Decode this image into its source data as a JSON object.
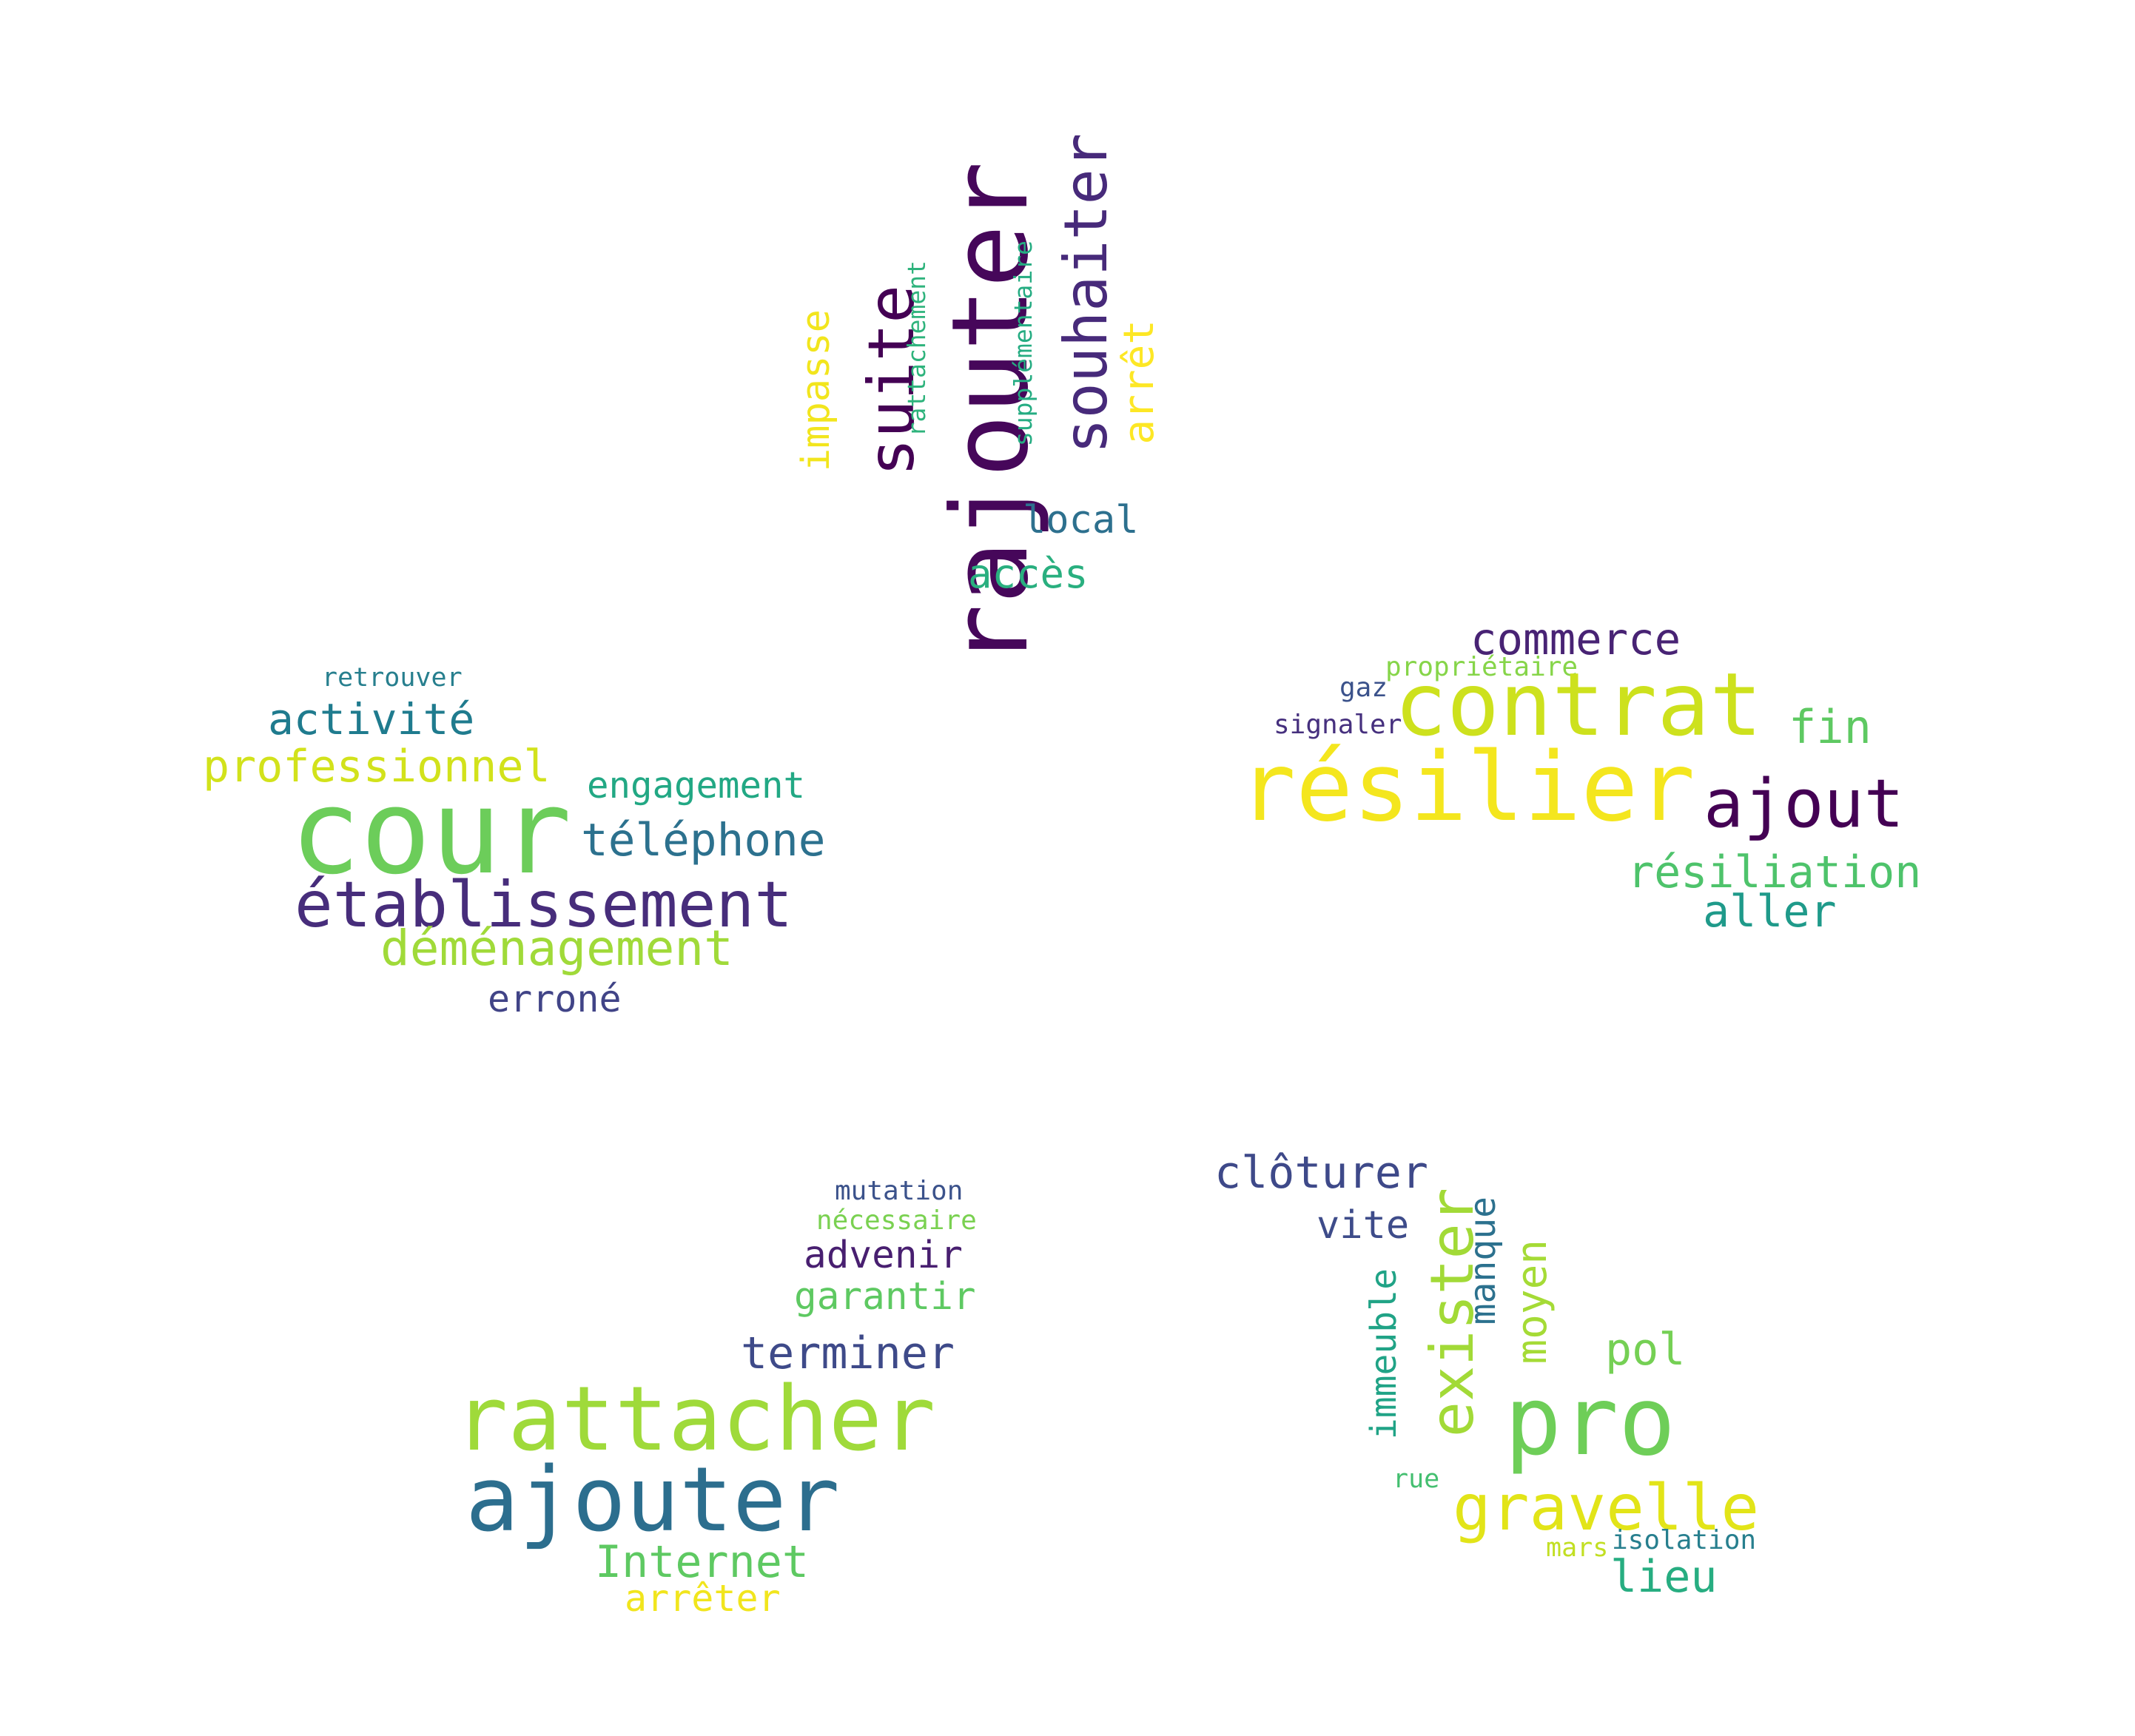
{
  "clusters": [
    {
      "name": "top",
      "words": [
        {
          "text": "rajouter",
          "color": "#46075a"
        },
        {
          "text": "suite",
          "color": "#440154"
        },
        {
          "text": "souhaiter",
          "color": "#472a7a"
        },
        {
          "text": "arrêt",
          "color": "#fde725"
        },
        {
          "text": "impasse",
          "color": "#f2e51d"
        },
        {
          "text": "rattachement",
          "color": "#2eb37c"
        },
        {
          "text": "supplémentaire",
          "color": "#25ac82"
        },
        {
          "text": "local",
          "color": "#2d708e"
        },
        {
          "text": "accès",
          "color": "#29af7f"
        }
      ]
    },
    {
      "name": "left",
      "words": [
        {
          "text": "retrouver",
          "color": "#277f8e"
        },
        {
          "text": "activité",
          "color": "#1f7b8e"
        },
        {
          "text": "professionnel",
          "color": "#d2e21b"
        },
        {
          "text": "cour",
          "color": "#6ccd5a"
        },
        {
          "text": "engagement",
          "color": "#22a884"
        },
        {
          "text": "téléphone",
          "color": "#2c718e"
        },
        {
          "text": "établissement",
          "color": "#472d7b"
        },
        {
          "text": "déménagement",
          "color": "#a0da39"
        },
        {
          "text": "erroné",
          "color": "#414487"
        }
      ]
    },
    {
      "name": "right",
      "words": [
        {
          "text": "commerce",
          "color": "#482374"
        },
        {
          "text": "propriétaire",
          "color": "#86d549"
        },
        {
          "text": "gaz",
          "color": "#3b528b"
        },
        {
          "text": "contrat",
          "color": "#cde11d"
        },
        {
          "text": "signaler",
          "color": "#46307e"
        },
        {
          "text": "fin",
          "color": "#5ec962"
        },
        {
          "text": "résilier",
          "color": "#f4e61e"
        },
        {
          "text": "ajout",
          "color": "#440154"
        },
        {
          "text": "résiliation",
          "color": "#4ec36b"
        },
        {
          "text": "aller",
          "color": "#1f9a8a"
        }
      ]
    },
    {
      "name": "bottom-left",
      "words": [
        {
          "text": "mutation",
          "color": "#3b528b"
        },
        {
          "text": "nécessaire",
          "color": "#7ad151"
        },
        {
          "text": "advenir",
          "color": "#481f70"
        },
        {
          "text": "garantir",
          "color": "#5ec962"
        },
        {
          "text": "terminer",
          "color": "#3e4a89"
        },
        {
          "text": "rattacher",
          "color": "#9fda3a"
        },
        {
          "text": "ajouter",
          "color": "#2c6e8e"
        },
        {
          "text": "Internet",
          "color": "#5ec962"
        },
        {
          "text": "arrêter",
          "color": "#f1e51d"
        }
      ]
    },
    {
      "name": "bottom-right",
      "words": [
        {
          "text": "clôturer",
          "color": "#3e4989"
        },
        {
          "text": "vite",
          "color": "#3e4c8a"
        },
        {
          "text": "exister",
          "color": "#a2da37"
        },
        {
          "text": "manque",
          "color": "#2c718e"
        },
        {
          "text": "immeuble",
          "color": "#20a386"
        },
        {
          "text": "moyen",
          "color": "#a5db36"
        },
        {
          "text": "pol",
          "color": "#75d054"
        },
        {
          "text": "pro",
          "color": "#6ece58"
        },
        {
          "text": "rue",
          "color": "#44bf70"
        },
        {
          "text": "gravelle",
          "color": "#e2e418"
        },
        {
          "text": "mars",
          "color": "#c2df23"
        },
        {
          "text": "isolation",
          "color": "#277f8e"
        },
        {
          "text": "lieu",
          "color": "#27ad81"
        }
      ]
    }
  ]
}
